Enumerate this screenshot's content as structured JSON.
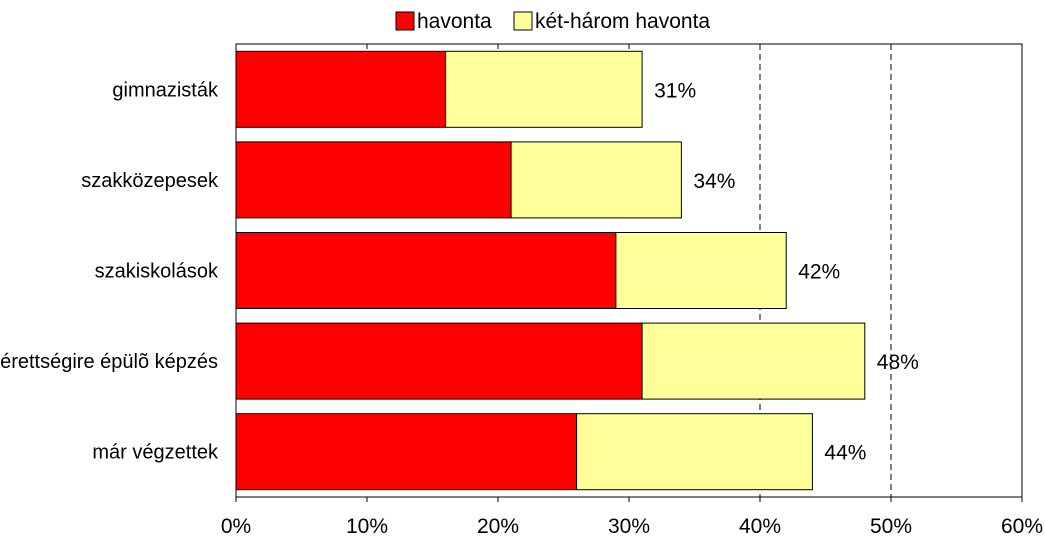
{
  "chart_data": {
    "type": "bar",
    "orientation": "horizontal",
    "stacked": true,
    "categories": [
      "gimnazisták",
      "szakközepesek",
      "szakiskolások",
      "érettségire épülõ képzés",
      "már végzettek"
    ],
    "series": [
      {
        "name": "havonta",
        "values": [
          16,
          21,
          29,
          31,
          26
        ],
        "color": "#ff0000"
      },
      {
        "name": "két-három havonta",
        "values": [
          15,
          13,
          13,
          17,
          18
        ],
        "color": "#ffff99"
      }
    ],
    "total_labels": [
      "31%",
      "34%",
      "42%",
      "48%",
      "44%"
    ],
    "xlim": [
      0,
      60
    ],
    "x_ticks": [
      0,
      10,
      20,
      30,
      40,
      50,
      60
    ],
    "x_tick_labels": [
      "0%",
      "10%",
      "20%",
      "30%",
      "40%",
      "50%",
      "60%"
    ],
    "dashed_gridlines_at": [
      40,
      50
    ],
    "legend_position": "top",
    "title": "",
    "xlabel": "",
    "ylabel": ""
  }
}
